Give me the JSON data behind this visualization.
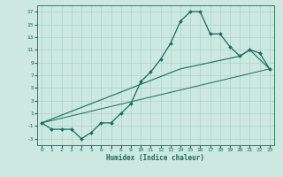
{
  "title": "",
  "xlabel": "Humidex (Indice chaleur)",
  "bg_color": "#cce8e0",
  "line_color": "#1a6b5a",
  "grid_color": "#aad4c8",
  "xlim": [
    -0.5,
    23.5
  ],
  "ylim": [
    -4,
    18
  ],
  "yticks": [
    -3,
    -1,
    1,
    3,
    5,
    7,
    9,
    11,
    13,
    15,
    17
  ],
  "xticks": [
    0,
    1,
    2,
    3,
    4,
    5,
    6,
    7,
    8,
    9,
    10,
    11,
    12,
    13,
    14,
    15,
    16,
    17,
    18,
    19,
    20,
    21,
    22,
    23
  ],
  "series1_x": [
    0,
    1,
    2,
    3,
    4,
    5,
    6,
    7,
    8,
    9,
    10,
    11,
    12,
    13,
    14,
    15,
    16,
    17,
    18,
    19,
    20,
    21,
    22,
    23
  ],
  "series1_y": [
    -0.5,
    -1.5,
    -1.5,
    -1.5,
    -3,
    -2,
    -0.5,
    -0.5,
    1,
    2.5,
    6,
    7.5,
    9.5,
    12,
    15.5,
    17,
    17,
    13.5,
    13.5,
    11.5,
    10,
    11,
    10.5,
    8
  ],
  "series2_x": [
    0,
    14,
    20,
    21,
    23
  ],
  "series2_y": [
    -0.5,
    8,
    10,
    11,
    8
  ],
  "series3_x": [
    0,
    23
  ],
  "series3_y": [
    -0.5,
    8
  ]
}
